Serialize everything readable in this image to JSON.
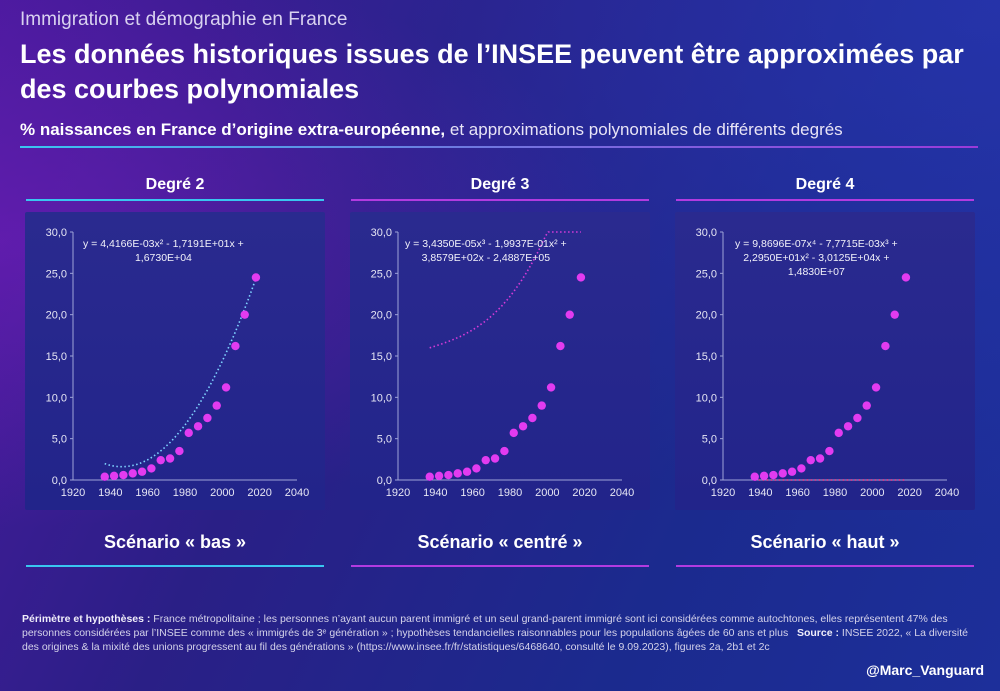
{
  "header": {
    "supertitle": "Immigration et démographie en France",
    "title": "Les données historiques issues de l’INSEE peuvent être approximées par des courbes polynomiales",
    "subtitle_bold": "% naissances en France d’origine extra-européenne,",
    "subtitle_rest": " et approximations polynomiales de différents degrés"
  },
  "colors": {
    "points": "#e23bf0",
    "fit_deg2": "#7fd4ff",
    "fit_deg3": "#d63bd8",
    "fit_deg4": "#ff3a8a",
    "rule_cyan": "#39c6f0",
    "rule_magenta": "#b23be0"
  },
  "chart_data": [
    {
      "type": "scatter",
      "title": "Degré 2",
      "scenario": "Scénario « bas »",
      "equation_lines": [
        "y = 4,4166E-03x² - 1,7191E+01x +",
        "1,6730E+04"
      ],
      "fit_coefficients": [
        16730,
        -17.191,
        0.0044166
      ],
      "x_ticks": [
        "1920",
        "1940",
        "1960",
        "1980",
        "2000",
        "2020",
        "2040"
      ],
      "y_ticks": [
        "0,0",
        "5,0",
        "10,0",
        "15,0",
        "20,0",
        "25,0",
        "30,0"
      ],
      "xlim": [
        1920,
        2040
      ],
      "ylim": [
        0,
        30
      ],
      "fit_range": [
        1937,
        2018
      ],
      "x": [
        1937,
        1942,
        1947,
        1952,
        1957,
        1962,
        1967,
        1972,
        1977,
        1982,
        1987,
        1992,
        1997,
        2002,
        2007,
        2012,
        2018
      ],
      "y": [
        0.4,
        0.5,
        0.6,
        0.8,
        1.0,
        1.4,
        2.4,
        2.6,
        3.5,
        5.7,
        6.5,
        7.5,
        9.0,
        11.2,
        16.2,
        20.0,
        24.5
      ]
    },
    {
      "type": "scatter",
      "title": "Degré 3",
      "scenario": "Scénario « centré »",
      "equation_lines": [
        "y = 3,4350E-05x³ - 1,9937E-01x² +",
        "3,8579E+02x - 2,4887E+05"
      ],
      "fit_coefficients": [
        -248870,
        385.79,
        -0.19937,
        3.435e-05
      ],
      "x_ticks": [
        "1920",
        "1940",
        "1960",
        "1980",
        "2000",
        "2020",
        "2040"
      ],
      "y_ticks": [
        "0,0",
        "5,0",
        "10,0",
        "15,0",
        "20,0",
        "25,0",
        "30,0"
      ],
      "xlim": [
        1920,
        2040
      ],
      "ylim": [
        0,
        30
      ],
      "fit_range": [
        1937,
        2018
      ],
      "x": [
        1937,
        1942,
        1947,
        1952,
        1957,
        1962,
        1967,
        1972,
        1977,
        1982,
        1987,
        1992,
        1997,
        2002,
        2007,
        2012,
        2018
      ],
      "y": [
        0.4,
        0.5,
        0.6,
        0.8,
        1.0,
        1.4,
        2.4,
        2.6,
        3.5,
        5.7,
        6.5,
        7.5,
        9.0,
        11.2,
        16.2,
        20.0,
        24.5
      ]
    },
    {
      "type": "scatter",
      "title": "Degré 4",
      "scenario": "Scénario « haut »",
      "equation_lines": [
        "y = 9,8696E-07x⁴ - 7,7715E-03x³ +",
        "2,2950E+01x² - 3,0125E+04x +",
        "1,4830E+07"
      ],
      "fit_coefficients": [
        14830000,
        -30125,
        22.95,
        -0.0077715,
        9.8696e-07
      ],
      "x_ticks": [
        "1920",
        "1940",
        "1960",
        "1980",
        "2000",
        "2020",
        "2040"
      ],
      "y_ticks": [
        "0,0",
        "5,0",
        "10,0",
        "15,0",
        "20,0",
        "25,0",
        "30,0"
      ],
      "xlim": [
        1920,
        2040
      ],
      "ylim": [
        0,
        30
      ],
      "fit_range": [
        1937,
        2018
      ],
      "x": [
        1937,
        1942,
        1947,
        1952,
        1957,
        1962,
        1967,
        1972,
        1977,
        1982,
        1987,
        1992,
        1997,
        2002,
        2007,
        2012,
        2018
      ],
      "y": [
        0.4,
        0.5,
        0.6,
        0.8,
        1.0,
        1.4,
        2.4,
        2.6,
        3.5,
        5.7,
        6.5,
        7.5,
        9.0,
        11.2,
        16.2,
        20.0,
        24.5
      ]
    }
  ],
  "footer": {
    "perimeter_label": "Périmètre et hypothèses :",
    "perimeter_text": " France métropolitaine ; les personnes n’ayant aucun parent immigré et un seul grand-parent immigré sont ici considérées comme autochtones, elles représentent 47% des personnes considérées par l’INSEE comme des « immigrés de 3ᵉ génération » ; hypothèses tendancielles raisonnables pour les populations âgées de 60 ans et plus",
    "source_label": "Source :",
    "source_text": " INSEE 2022, « La diversité des origines & la mixité des unions progressent au fil des générations » (https://www.insee.fr/fr/statistiques/6468640, consulté le 9.09.2023), figures 2a, 2b1 et 2c",
    "handle": "@Marc_Vanguard"
  }
}
